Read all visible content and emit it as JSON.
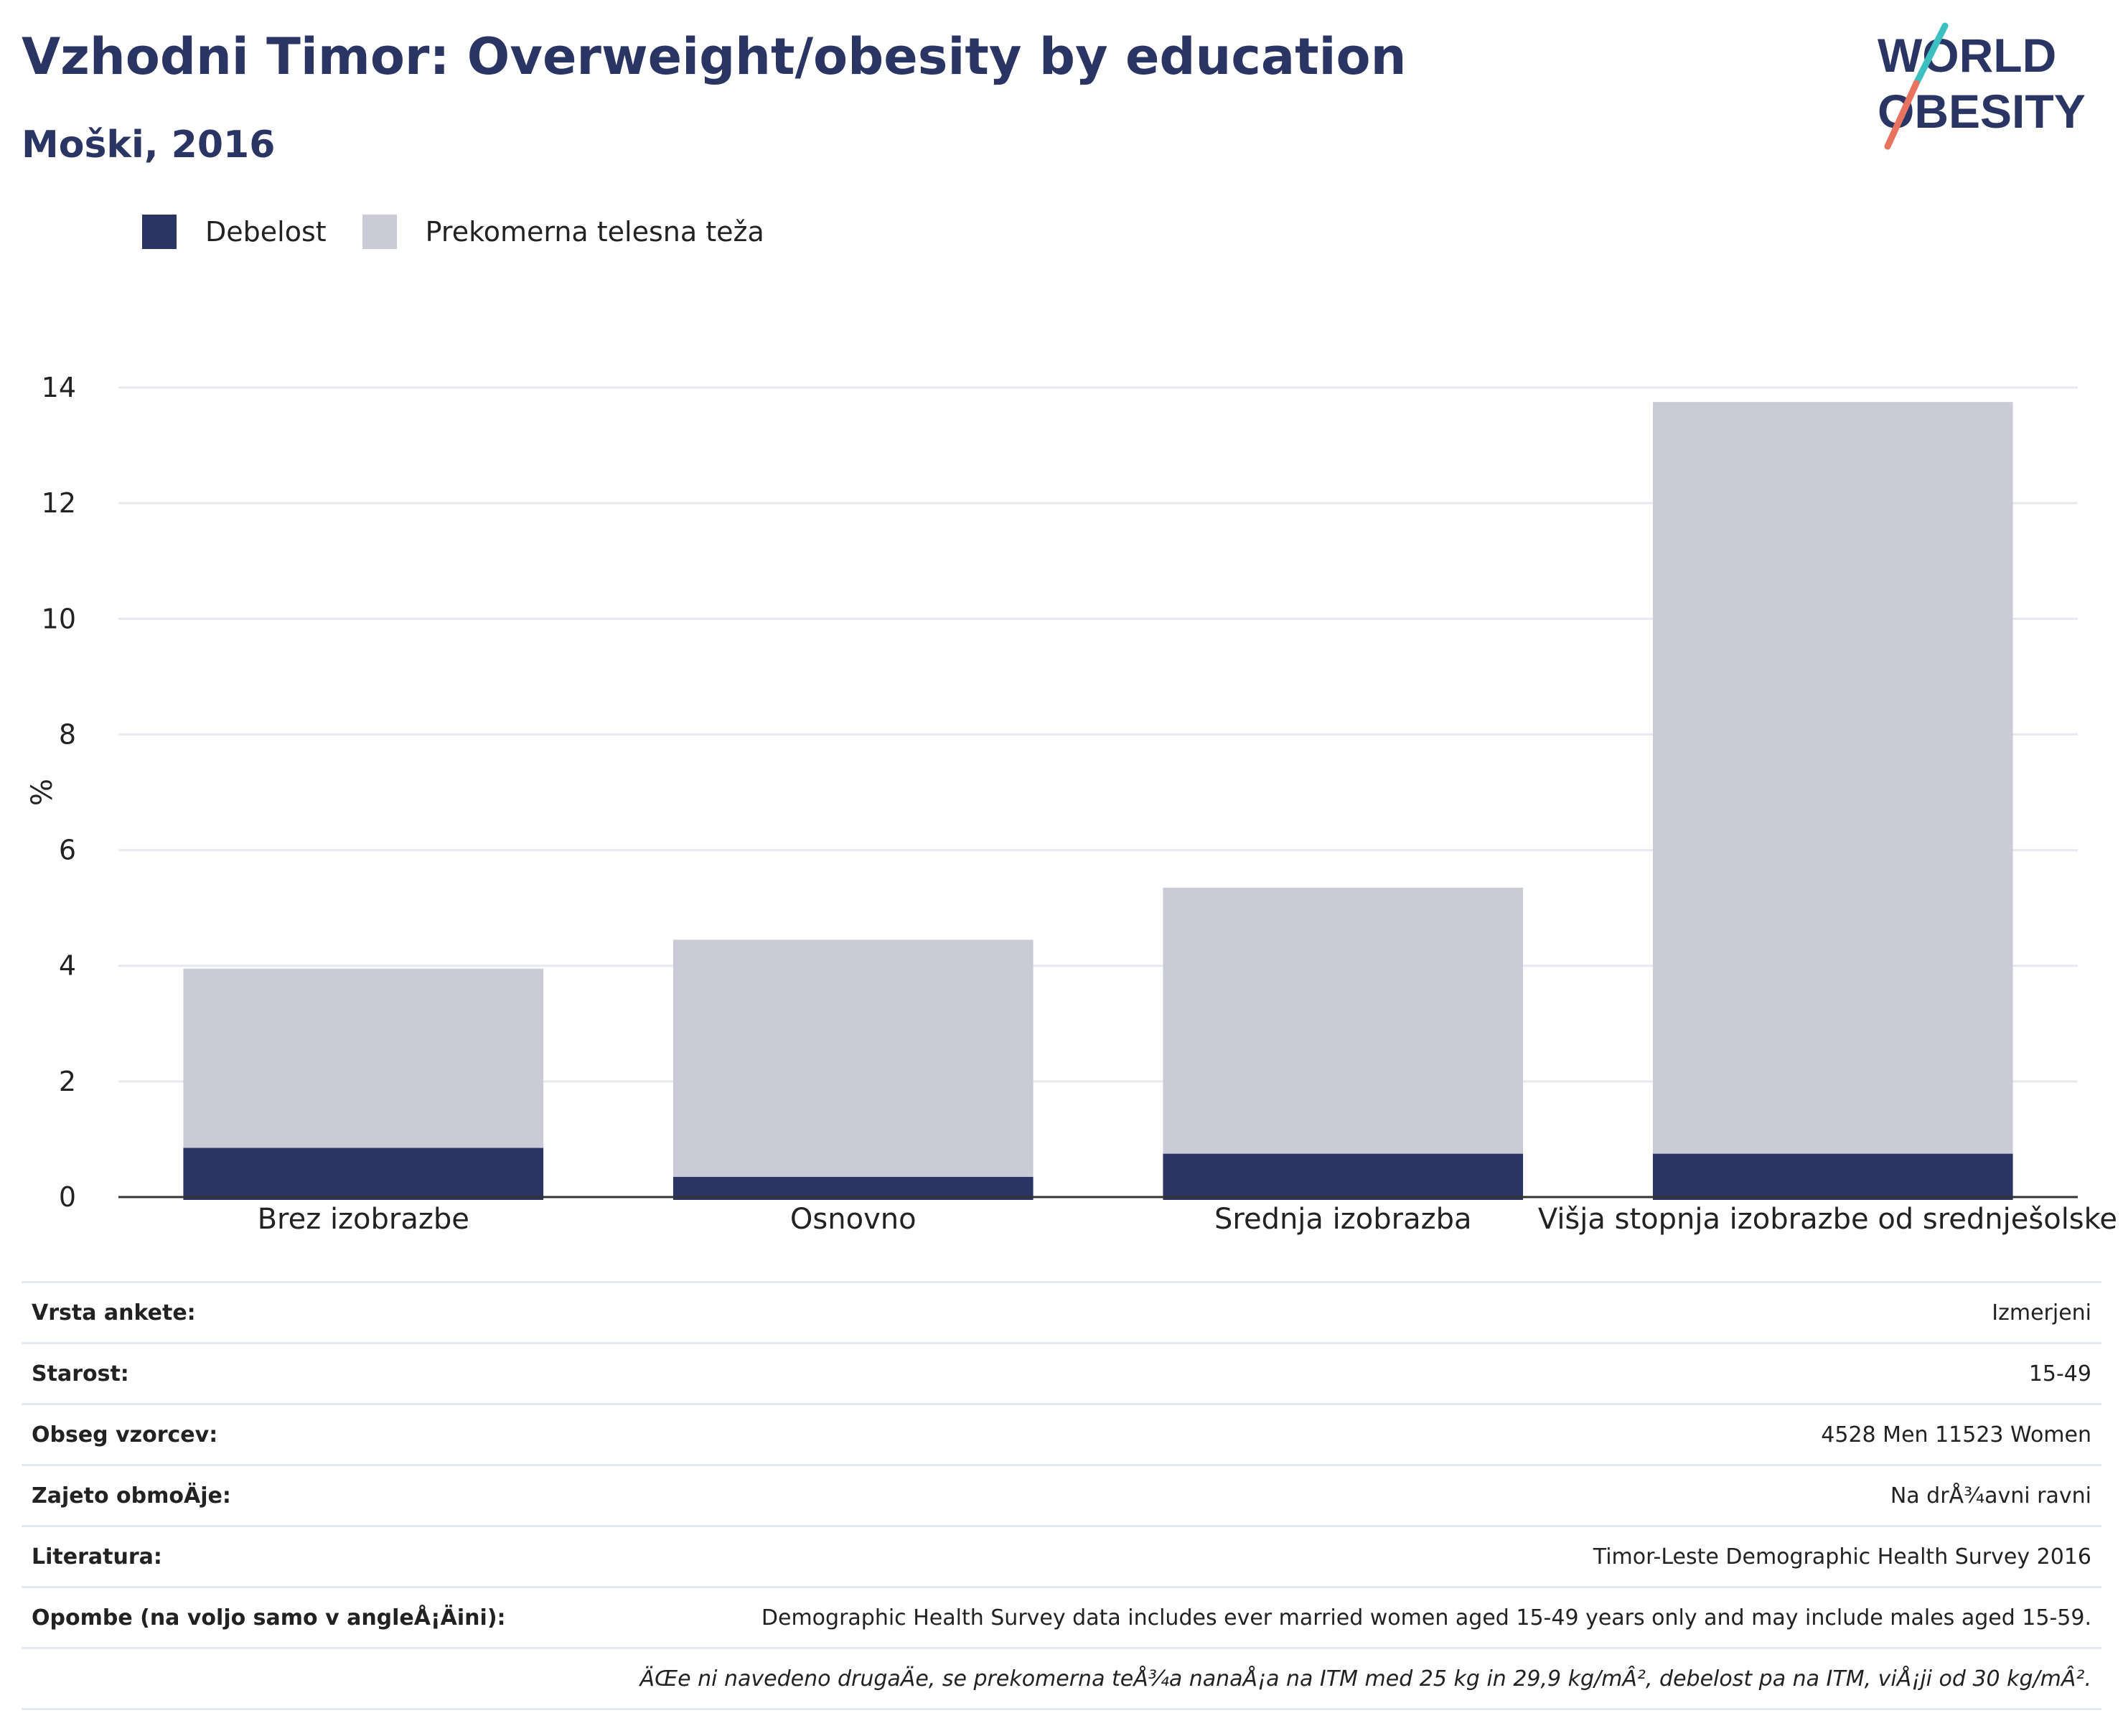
{
  "header": {
    "title": "Vzhodni Timor: Overweight/obesity by education",
    "subtitle": "Moški, 2016",
    "logo_text_top": "WORLD",
    "logo_text_bottom": "OBESITY"
  },
  "legend": {
    "items": [
      {
        "label": "Debelost",
        "color": "#2a3563"
      },
      {
        "label": "Prekomerna telesna teža",
        "color": "#cacbd6"
      }
    ]
  },
  "chart_data": {
    "type": "bar",
    "stacked": true,
    "ylabel": "%",
    "ylim": [
      0,
      14
    ],
    "yticks": [
      0,
      2,
      4,
      6,
      8,
      10,
      12,
      14
    ],
    "grid": true,
    "legend_position": "top-left",
    "categories": [
      "Brez izobrazbe",
      "Osnovno",
      "Srednja izobrazba",
      "Višja stopnja izobrazbe od srednješolske"
    ],
    "series": [
      {
        "name": "Debelost",
        "color": "#2a3563",
        "values": [
          0.85,
          0.35,
          0.75,
          0.75
        ]
      },
      {
        "name": "Prekomerna telesna teža",
        "color": "#cacbd6",
        "values": [
          3.1,
          4.1,
          4.6,
          13.0
        ]
      }
    ]
  },
  "meta_table": [
    {
      "key": "Vrsta ankete:",
      "value": "Izmerjeni"
    },
    {
      "key": "Starost:",
      "value": "15-49"
    },
    {
      "key": "Obseg vzorcev:",
      "value": "4528 Men 11523 Women"
    },
    {
      "key": "Zajeto obmoÄje:",
      "value": "Na drÅ¾avni ravni"
    },
    {
      "key": "Literatura:",
      "value": "Timor-Leste Demographic Health Survey 2016"
    },
    {
      "key": "Opombe (na voljo samo v angleÅ¡Äini):",
      "value": "Demographic Health Survey data includes ever married women aged 15-49 years only and may include males aged 15-59."
    },
    {
      "key": "",
      "value": "ÄŒe ni navedeno drugaÄe, se prekomerna teÅ¾a nanaÅ¡a na ITM med 25 kg in 29,9 kg/mÂ², debelost pa na ITM, viÅ¡ji od 30 kg/mÂ²."
    }
  ]
}
